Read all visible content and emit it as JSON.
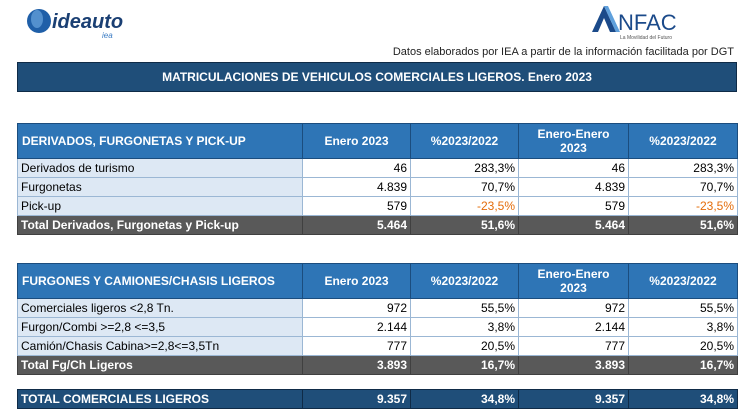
{
  "logos": {
    "ideauto_text": "ideauto",
    "ideauto_sub": "iea",
    "anfac_text": "NFAC",
    "anfac_tagline": "La Movilidad del Futuro"
  },
  "source_note": "Datos elaborados por IEA a partir de la información facilitada por DGT",
  "banner_title": "MATRICULACIONES DE VEHICULOS COMERCIALES LIGEROS. Enero 2023",
  "table1": {
    "headers": [
      "DERIVADOS, FURGONETAS Y PICK-UP",
      "Enero 2023",
      "%2023/2022",
      "Enero-Enero 2023",
      "%2023/2022"
    ],
    "rows": [
      [
        "Derivados de turismo",
        "46",
        "283,3%",
        "46",
        "283,3%"
      ],
      [
        "Furgonetas",
        "4.839",
        "70,7%",
        "4.839",
        "70,7%"
      ],
      [
        "Pick-up",
        "579",
        "-23,5%",
        "579",
        "-23,5%"
      ]
    ],
    "total": [
      "Total Derivados, Furgonetas y Pick-up",
      "5.464",
      "51,6%",
      "5.464",
      "51,6%"
    ]
  },
  "table2": {
    "headers": [
      "FURGONES Y CAMIONES/CHASIS LIGEROS",
      "Enero 2023",
      "%2023/2022",
      "Enero-Enero 2023",
      "%2023/2022"
    ],
    "rows": [
      [
        "Comerciales ligeros <2,8 Tn.",
        "972",
        "55,5%",
        "972",
        "55,5%"
      ],
      [
        "Furgon/Combi >=2,8 <=3,5",
        "2.144",
        "3,8%",
        "2.144",
        "3,8%"
      ],
      [
        "Camión/Chasis Cabina>=2,8<=3,5Tn",
        "777",
        "20,5%",
        "777",
        "20,5%"
      ]
    ],
    "total": [
      "Total Fg/Ch Ligeros",
      "3.893",
      "16,7%",
      "3.893",
      "16,7%"
    ]
  },
  "grand_total": [
    "TOTAL COMERCIALES LIGEROS",
    "9.357",
    "34,8%",
    "9.357",
    "34,8%"
  ],
  "colors": {
    "header_blue": "#2e75b6",
    "dark_blue": "#1f4e79",
    "total_gray": "#595959",
    "negative_orange": "#e46c0a"
  }
}
